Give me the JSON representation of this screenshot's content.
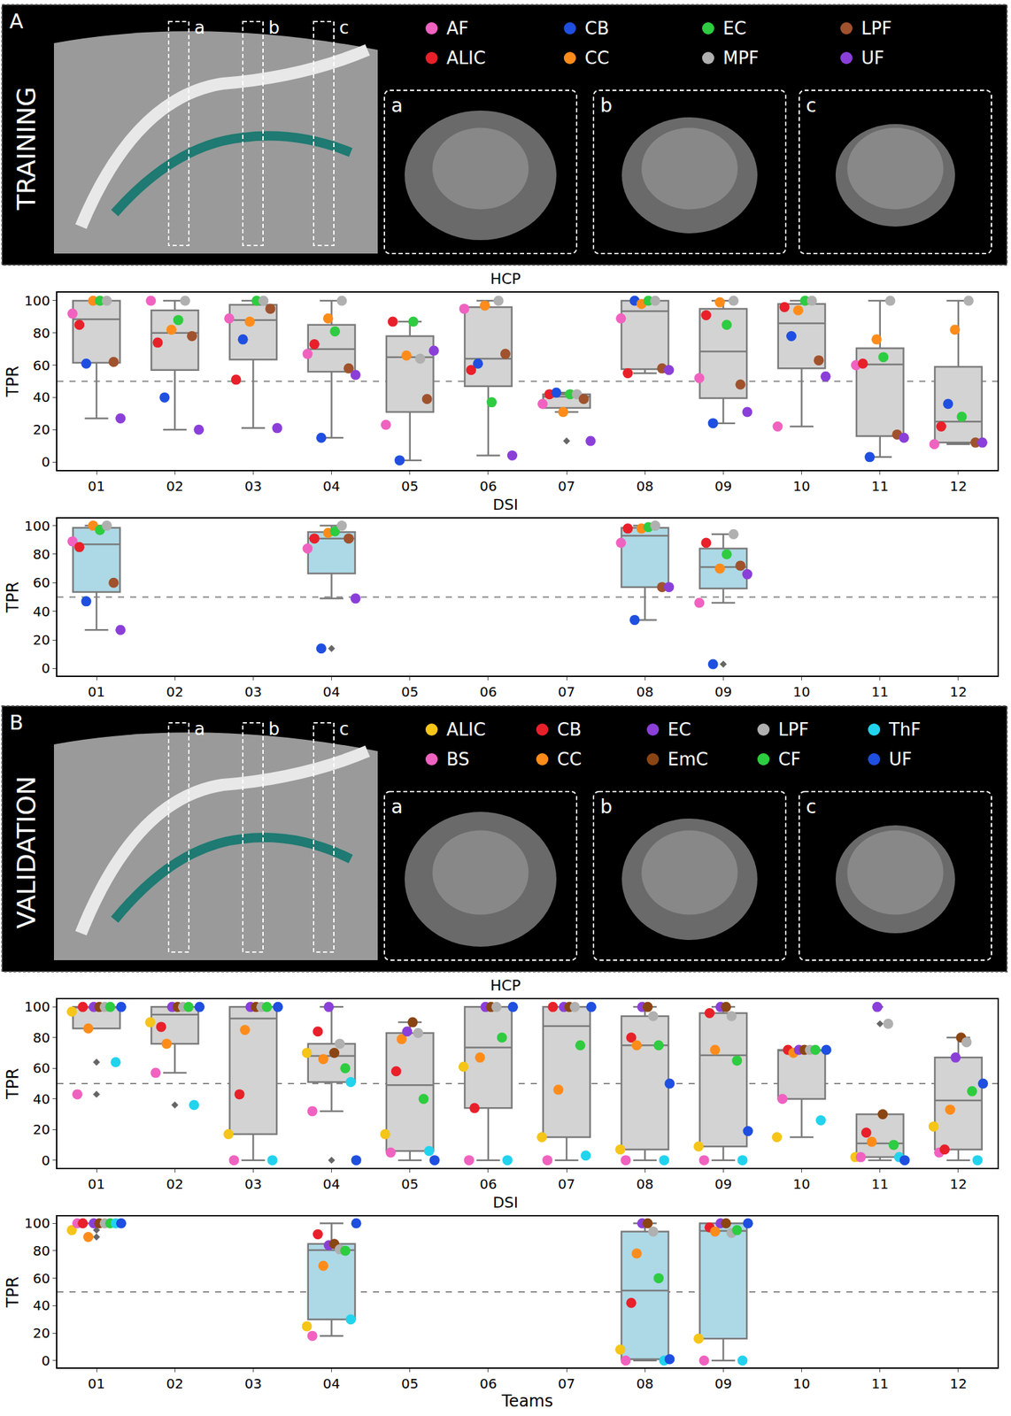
{
  "panels": [
    {
      "label": "A",
      "title": "TRAINING",
      "slices": [
        "a",
        "b",
        "c"
      ],
      "legend": [
        {
          "name": "AF",
          "color": "#f062c0"
        },
        {
          "name": "ALIC",
          "color": "#e8202a"
        },
        {
          "name": "CB",
          "color": "#1f4fe0"
        },
        {
          "name": "CC",
          "color": "#ff8c1a"
        },
        {
          "name": "EC",
          "color": "#2ecc40"
        },
        {
          "name": "MPF",
          "color": "#b0b0b0"
        },
        {
          "name": "LPF",
          "color": "#a0522d"
        },
        {
          "name": "UF",
          "color": "#8b3fd9"
        }
      ]
    },
    {
      "label": "B",
      "title": "VALIDATION",
      "slices": [
        "a",
        "b",
        "c"
      ],
      "legend": [
        {
          "name": "ALIC",
          "color": "#f5c518"
        },
        {
          "name": "BS",
          "color": "#f062c0"
        },
        {
          "name": "CB",
          "color": "#e8202a"
        },
        {
          "name": "CC",
          "color": "#ff8c1a"
        },
        {
          "name": "EC",
          "color": "#8b3fd9"
        },
        {
          "name": "EmC",
          "color": "#8b4513"
        },
        {
          "name": "LPF",
          "color": "#b0b0b0"
        },
        {
          "name": "CF",
          "color": "#2ecc40"
        },
        {
          "name": "ThF",
          "color": "#22d3ee"
        },
        {
          "name": "UF",
          "color": "#1f4fe0"
        }
      ]
    }
  ],
  "chart_data": [
    {
      "type": "box",
      "title": "HCP",
      "y_label": "TPR",
      "color": "#d3d3d3",
      "categories": [
        "01",
        "02",
        "03",
        "04",
        "05",
        "06",
        "07",
        "08",
        "09",
        "10",
        "11",
        "12"
      ],
      "ylim": [
        -5,
        105
      ],
      "yticks": [
        0,
        20,
        40,
        60,
        80,
        100
      ],
      "hline": 50,
      "grid": false,
      "series": [
        {
          "name": "AF",
          "color": "#f062c0",
          "values": [
            92,
            100,
            89,
            67,
            23,
            95,
            36,
            89,
            52,
            22,
            60,
            11
          ]
        },
        {
          "name": "ALIC",
          "color": "#e8202a",
          "values": [
            85,
            74,
            51,
            73,
            87,
            57,
            42,
            55,
            91,
            96,
            61,
            22
          ]
        },
        {
          "name": "CB",
          "color": "#1f4fe0",
          "values": [
            61,
            40,
            76,
            15,
            1,
            61,
            43,
            100,
            24,
            78,
            3,
            36
          ]
        },
        {
          "name": "CC",
          "color": "#ff8c1a",
          "values": [
            100,
            82,
            87,
            89,
            66,
            97,
            31,
            98,
            99,
            94,
            76,
            82
          ]
        },
        {
          "name": "EC",
          "color": "#2ecc40",
          "values": [
            100,
            88,
            100,
            81,
            87,
            37,
            42,
            100,
            85,
            100,
            65,
            28
          ]
        },
        {
          "name": "MPF",
          "color": "#b0b0b0",
          "values": [
            100,
            100,
            100,
            100,
            64,
            100,
            42,
            100,
            100,
            100,
            100,
            100
          ]
        },
        {
          "name": "LPF",
          "color": "#a0522d",
          "values": [
            62,
            78,
            95,
            58,
            39,
            67,
            39,
            58,
            48,
            63,
            17,
            12
          ]
        },
        {
          "name": "UF",
          "color": "#8b3fd9",
          "values": [
            27,
            20,
            21,
            54,
            69,
            4,
            13,
            57,
            31,
            53,
            15,
            12
          ]
        }
      ]
    },
    {
      "type": "box",
      "title": "DSI",
      "y_label": "TPR",
      "color": "#add8e6",
      "categories": [
        "01",
        "02",
        "03",
        "04",
        "05",
        "06",
        "07",
        "08",
        "09",
        "10",
        "11",
        "12"
      ],
      "ylim": [
        -5,
        105
      ],
      "yticks": [
        0,
        20,
        40,
        60,
        80,
        100
      ],
      "hline": 50,
      "grid": false,
      "series": [
        {
          "name": "AF",
          "color": "#f062c0",
          "values": [
            89,
            null,
            null,
            84,
            null,
            null,
            null,
            88,
            46,
            null,
            null,
            null
          ]
        },
        {
          "name": "ALIC",
          "color": "#e8202a",
          "values": [
            85,
            null,
            null,
            91,
            null,
            null,
            null,
            98,
            88,
            null,
            null,
            null
          ]
        },
        {
          "name": "CB",
          "color": "#1f4fe0",
          "values": [
            47,
            null,
            null,
            14,
            null,
            null,
            null,
            34,
            3,
            null,
            null,
            null
          ]
        },
        {
          "name": "CC",
          "color": "#ff8c1a",
          "values": [
            100,
            null,
            null,
            95,
            null,
            null,
            null,
            98,
            70,
            null,
            null,
            null
          ]
        },
        {
          "name": "EC",
          "color": "#2ecc40",
          "values": [
            97,
            null,
            null,
            96,
            null,
            null,
            null,
            99,
            80,
            null,
            null,
            null
          ]
        },
        {
          "name": "MPF",
          "color": "#b0b0b0",
          "values": [
            100,
            null,
            null,
            100,
            null,
            null,
            null,
            100,
            94,
            null,
            null,
            null
          ]
        },
        {
          "name": "LPF",
          "color": "#a0522d",
          "values": [
            60,
            null,
            null,
            91,
            null,
            null,
            null,
            57,
            72,
            null,
            null,
            null
          ]
        },
        {
          "name": "UF",
          "color": "#8b3fd9",
          "values": [
            27,
            null,
            null,
            49,
            null,
            null,
            null,
            57,
            66,
            null,
            null,
            null
          ]
        }
      ]
    },
    {
      "type": "box",
      "title": "HCP",
      "y_label": "TPR",
      "color": "#d3d3d3",
      "categories": [
        "01",
        "02",
        "03",
        "04",
        "05",
        "06",
        "07",
        "08",
        "09",
        "10",
        "11",
        "12"
      ],
      "ylim": [
        -5,
        105
      ],
      "yticks": [
        0,
        20,
        40,
        60,
        80,
        100
      ],
      "hline": 50,
      "grid": false,
      "series": [
        {
          "name": "ALIC",
          "color": "#f5c518",
          "values": [
            97,
            90,
            17,
            70,
            17,
            61,
            15,
            7,
            9,
            15,
            2,
            22
          ]
        },
        {
          "name": "BS",
          "color": "#f062c0",
          "values": [
            43,
            57,
            0,
            32,
            5,
            0,
            0,
            0,
            0,
            40,
            2,
            5
          ]
        },
        {
          "name": "CB",
          "color": "#e8202a",
          "values": [
            100,
            87,
            43,
            84,
            58,
            34,
            100,
            80,
            96,
            72,
            18,
            7
          ]
        },
        {
          "name": "CC",
          "color": "#ff8c1a",
          "values": [
            86,
            76,
            85,
            66,
            79,
            67,
            46,
            75,
            72,
            70,
            12,
            33
          ]
        },
        {
          "name": "EC",
          "color": "#8b3fd9",
          "values": [
            100,
            100,
            100,
            100,
            84,
            100,
            100,
            100,
            100,
            72,
            100,
            67
          ]
        },
        {
          "name": "EmC",
          "color": "#8b4513",
          "values": [
            100,
            100,
            100,
            70,
            90,
            100,
            100,
            100,
            100,
            72,
            30,
            80
          ]
        },
        {
          "name": "LPF",
          "color": "#b0b0b0",
          "values": [
            100,
            100,
            100,
            76,
            83,
            100,
            100,
            94,
            94,
            72,
            89,
            77
          ]
        },
        {
          "name": "CF",
          "color": "#2ecc40",
          "values": [
            100,
            100,
            100,
            60,
            40,
            80,
            75,
            75,
            65,
            72,
            10,
            45
          ]
        },
        {
          "name": "ThF",
          "color": "#22d3ee",
          "values": [
            64,
            36,
            0,
            51,
            6,
            0,
            3,
            0,
            0,
            26,
            2,
            0
          ]
        },
        {
          "name": "UF",
          "color": "#1f4fe0",
          "values": [
            100,
            100,
            100,
            0,
            0,
            100,
            100,
            50,
            19,
            72,
            0,
            50
          ]
        }
      ]
    },
    {
      "type": "box",
      "title": "DSI",
      "y_label": "TPR",
      "x_label": "Teams",
      "color": "#add8e6",
      "categories": [
        "01",
        "02",
        "03",
        "04",
        "05",
        "06",
        "07",
        "08",
        "09",
        "10",
        "11",
        "12"
      ],
      "ylim": [
        -5,
        105
      ],
      "yticks": [
        0,
        20,
        40,
        60,
        80,
        100
      ],
      "hline": 50,
      "grid": false,
      "series": [
        {
          "name": "ALIC",
          "color": "#f5c518",
          "values": [
            95,
            null,
            null,
            25,
            null,
            null,
            null,
            8,
            16,
            null,
            null,
            null
          ]
        },
        {
          "name": "BS",
          "color": "#f062c0",
          "values": [
            100,
            null,
            null,
            18,
            null,
            null,
            null,
            0,
            0,
            null,
            null,
            null
          ]
        },
        {
          "name": "CB",
          "color": "#e8202a",
          "values": [
            100,
            null,
            null,
            92,
            null,
            null,
            null,
            42,
            97,
            null,
            null,
            null
          ]
        },
        {
          "name": "CC",
          "color": "#ff8c1a",
          "values": [
            90,
            null,
            null,
            69,
            null,
            null,
            null,
            78,
            94,
            null,
            null,
            null
          ]
        },
        {
          "name": "EC",
          "color": "#8b3fd9",
          "values": [
            100,
            null,
            null,
            84,
            null,
            null,
            null,
            100,
            100,
            null,
            null,
            null
          ]
        },
        {
          "name": "EmC",
          "color": "#8b4513",
          "values": [
            100,
            null,
            null,
            85,
            null,
            null,
            null,
            100,
            100,
            null,
            null,
            null
          ]
        },
        {
          "name": "LPF",
          "color": "#b0b0b0",
          "values": [
            100,
            null,
            null,
            81,
            null,
            null,
            null,
            94,
            93,
            null,
            null,
            null
          ]
        },
        {
          "name": "CF",
          "color": "#2ecc40",
          "values": [
            100,
            null,
            null,
            80,
            null,
            null,
            null,
            60,
            95,
            null,
            null,
            null
          ]
        },
        {
          "name": "ThF",
          "color": "#22d3ee",
          "values": [
            100,
            null,
            null,
            30,
            null,
            null,
            null,
            0,
            0,
            null,
            null,
            null
          ]
        },
        {
          "name": "UF",
          "color": "#1f4fe0",
          "values": [
            100,
            null,
            null,
            100,
            null,
            null,
            null,
            1,
            100,
            null,
            null,
            null
          ]
        }
      ]
    }
  ]
}
